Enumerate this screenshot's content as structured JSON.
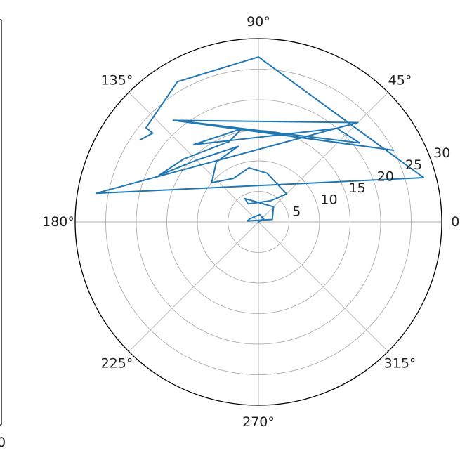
{
  "chart_data": {
    "type": "line",
    "projection": "polar",
    "title": "",
    "series": [
      {
        "color": "#1f77b4",
        "points": [
          {
            "theta_deg": 0,
            "r": 0
          },
          {
            "theta_deg": 30,
            "r": 1.0
          },
          {
            "theta_deg": 80,
            "r": 1.2
          },
          {
            "theta_deg": 160,
            "r": 1.5
          },
          {
            "theta_deg": 175,
            "r": 1.8
          },
          {
            "theta_deg": 10,
            "r": 2.3
          },
          {
            "theta_deg": 45,
            "r": 3.5
          },
          {
            "theta_deg": 120,
            "r": 4.4
          },
          {
            "theta_deg": 120,
            "r": 3.4
          },
          {
            "theta_deg": 60,
            "r": 4.0
          },
          {
            "theta_deg": 45,
            "r": 6.5
          },
          {
            "theta_deg": 80,
            "r": 8.1
          },
          {
            "theta_deg": 100,
            "r": 9.0
          },
          {
            "theta_deg": 120,
            "r": 8.2
          },
          {
            "theta_deg": 140,
            "r": 10.0
          },
          {
            "theta_deg": 125,
            "r": 12.0
          },
          {
            "theta_deg": 105,
            "r": 12.8
          },
          {
            "theta_deg": 135,
            "r": 14.3
          },
          {
            "theta_deg": 155,
            "r": 18.0
          },
          {
            "theta_deg": 140,
            "r": 16.0
          },
          {
            "theta_deg": 110,
            "r": 14.0
          },
          {
            "theta_deg": 100,
            "r": 15.5
          },
          {
            "theta_deg": 130,
            "r": 16.5
          },
          {
            "theta_deg": 50,
            "r": 20.0
          },
          {
            "theta_deg": 38,
            "r": 21.0
          },
          {
            "theta_deg": 125,
            "r": 20.0
          },
          {
            "theta_deg": 28,
            "r": 25.0
          },
          {
            "theta_deg": 130,
            "r": 21.7
          },
          {
            "theta_deg": 45,
            "r": 23.0
          },
          {
            "theta_deg": 170,
            "r": 27.0
          },
          {
            "theta_deg": 15,
            "r": 28.0
          },
          {
            "theta_deg": 90,
            "r": 27.0
          },
          {
            "theta_deg": 120,
            "r": 26.5
          },
          {
            "theta_deg": 140,
            "r": 24.0
          },
          {
            "theta_deg": 140,
            "r": 22.6
          },
          {
            "theta_deg": 145,
            "r": 23.5
          }
        ]
      }
    ],
    "theta_ticks": [
      {
        "deg": 0,
        "label": "0°"
      },
      {
        "deg": 45,
        "label": "45°"
      },
      {
        "deg": 90,
        "label": "90°"
      },
      {
        "deg": 135,
        "label": "135°"
      },
      {
        "deg": 180,
        "label": "180°"
      },
      {
        "deg": 225,
        "label": "225°"
      },
      {
        "deg": 270,
        "label": "270°"
      },
      {
        "deg": 315,
        "label": "315°"
      }
    ],
    "r_ticks": [
      {
        "value": 5,
        "label": "5"
      },
      {
        "value": 10,
        "label": "10"
      },
      {
        "value": 15,
        "label": "15"
      },
      {
        "value": 20,
        "label": "20"
      },
      {
        "value": 25,
        "label": "25"
      },
      {
        "value": 30,
        "label": "30"
      }
    ],
    "rlim": [
      0,
      30
    ],
    "r_label_angle_deg": 22.5,
    "grid": true,
    "neighbor_panel": {
      "visible_tick_label": "0"
    }
  }
}
